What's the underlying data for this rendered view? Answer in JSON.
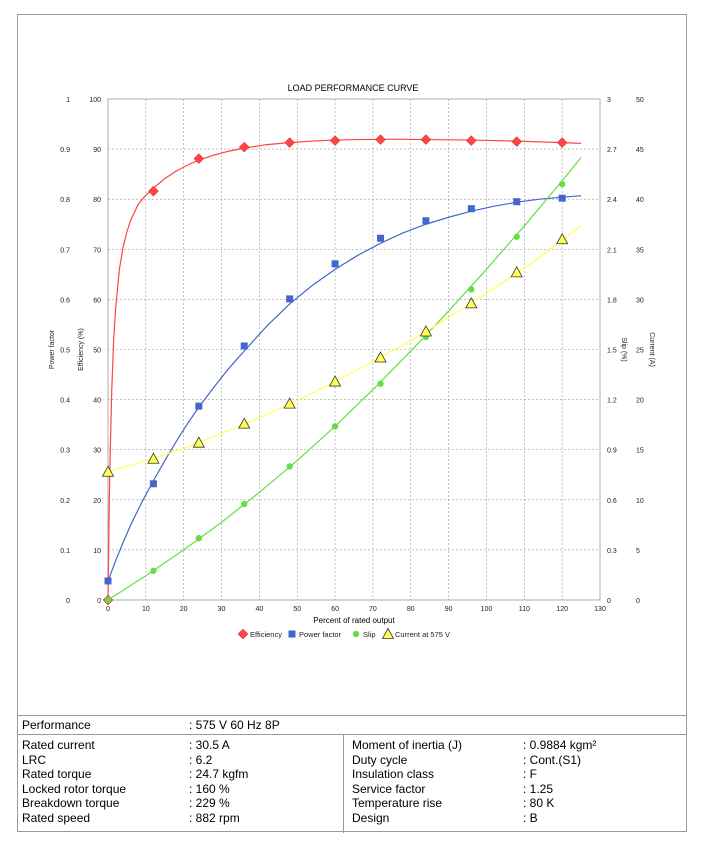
{
  "chart_data": {
    "type": "line",
    "title": "LOAD PERFORMANCE CURVE",
    "xlabel": "Percent of rated output",
    "x_range": [
      0,
      130
    ],
    "x_ticks": [
      "0",
      "10",
      "20",
      "30",
      "40",
      "50",
      "60",
      "70",
      "80",
      "90",
      "100",
      "110",
      "120",
      "130"
    ],
    "left_axes": [
      {
        "label": "Power factor",
        "range": [
          0,
          1
        ],
        "ticks": [
          "0",
          "0.1",
          "0.2",
          "0.3",
          "0.4",
          "0.5",
          "0.6",
          "0.7",
          "0.8",
          "0.9",
          "1"
        ]
      },
      {
        "label": "Efficiency (%)",
        "range": [
          0,
          100
        ],
        "ticks": [
          "0",
          "10",
          "20",
          "30",
          "40",
          "50",
          "60",
          "70",
          "80",
          "90",
          "100"
        ]
      }
    ],
    "right_axes": [
      {
        "label": "Slip (%)",
        "range": [
          0,
          3
        ],
        "ticks": [
          "0",
          "0.3",
          "0.6",
          "0.9",
          "1.2",
          "1.5",
          "1.8",
          "2.1",
          "2.4",
          "2.7",
          "3"
        ]
      },
      {
        "label": "Current (A)",
        "range": [
          0,
          50
        ],
        "ticks": [
          "0",
          "5",
          "10",
          "15",
          "20",
          "25",
          "30",
          "35",
          "40",
          "45",
          "50"
        ]
      }
    ],
    "grid": true,
    "legend_position": "bottom",
    "series": [
      {
        "name": "Efficiency",
        "axis": "Efficiency (%)",
        "color": "#ff4444",
        "marker": "diamond",
        "x": [
          0,
          12,
          24,
          36,
          48,
          60,
          72,
          84,
          96,
          108,
          120
        ],
        "y": [
          0,
          81.6,
          88.1,
          90.4,
          91.3,
          91.7,
          91.9,
          91.9,
          91.7,
          91.5,
          91.3
        ],
        "curve_x": [
          0,
          0.3,
          0.6,
          1,
          1.5,
          2,
          3,
          4,
          5,
          6,
          8,
          10,
          12,
          15,
          18,
          21,
          24,
          28,
          32,
          36,
          42,
          48,
          54,
          60,
          66,
          72,
          78,
          84,
          90,
          96,
          102,
          108,
          114,
          120,
          125
        ],
        "curve_y": [
          0,
          18,
          30,
          42,
          52,
          58,
          66,
          70.5,
          73.5,
          75.8,
          79,
          80.8,
          82.2,
          84.1,
          85.6,
          86.8,
          87.8,
          88.8,
          89.6,
          90.2,
          90.9,
          91.3,
          91.6,
          91.8,
          91.9,
          91.95,
          91.95,
          91.9,
          91.85,
          91.8,
          91.7,
          91.6,
          91.45,
          91.3,
          91.15
        ]
      },
      {
        "name": "Power factor",
        "axis": "Power factor",
        "color": "#4466cc",
        "marker": "square",
        "x": [
          0,
          12,
          24,
          36,
          48,
          60,
          72,
          84,
          96,
          108,
          120
        ],
        "y": [
          0.038,
          0.232,
          0.387,
          0.507,
          0.601,
          0.671,
          0.722,
          0.757,
          0.781,
          0.795,
          0.802
        ],
        "curve_x": [
          0,
          2,
          4,
          6,
          9,
          12,
          15,
          18,
          21,
          24,
          28,
          32,
          36,
          42,
          48,
          54,
          60,
          66,
          72,
          78,
          84,
          90,
          96,
          102,
          108,
          114,
          120,
          125
        ],
        "curve_y": [
          0.038,
          0.078,
          0.115,
          0.15,
          0.196,
          0.238,
          0.278,
          0.316,
          0.352,
          0.385,
          0.425,
          0.463,
          0.497,
          0.547,
          0.591,
          0.628,
          0.66,
          0.688,
          0.712,
          0.733,
          0.75,
          0.764,
          0.776,
          0.786,
          0.794,
          0.8,
          0.804,
          0.807
        ]
      },
      {
        "name": "Slip",
        "axis": "Slip (%)",
        "color": "#66dd44",
        "marker": "circle",
        "x": [
          0,
          12,
          24,
          36,
          48,
          60,
          72,
          84,
          96,
          108,
          120
        ],
        "y": [
          0,
          0.175,
          0.37,
          0.575,
          0.8,
          1.04,
          1.295,
          1.575,
          1.86,
          2.175,
          2.49
        ],
        "curve_x": [
          0,
          10,
          20,
          30,
          40,
          50,
          60,
          70,
          80,
          90,
          100,
          110,
          120,
          125
        ],
        "curve_y": [
          0,
          0.145,
          0.3,
          0.465,
          0.645,
          0.835,
          1.04,
          1.26,
          1.49,
          1.73,
          1.98,
          2.24,
          2.51,
          2.65
        ]
      },
      {
        "name": "Current at 575 V",
        "axis": "Current (A)",
        "color": "#ffff55",
        "marker": "triangle",
        "x": [
          0,
          12,
          24,
          36,
          48,
          60,
          72,
          84,
          96,
          108,
          120
        ],
        "y": [
          12.8,
          14.1,
          15.7,
          17.6,
          19.6,
          21.8,
          24.2,
          26.8,
          29.6,
          32.7,
          36.0
        ],
        "curve_x": [
          0,
          10,
          20,
          30,
          40,
          50,
          60,
          70,
          80,
          90,
          100,
          110,
          120,
          125
        ],
        "curve_y": [
          12.8,
          13.9,
          15.1,
          16.6,
          18.2,
          19.9,
          21.8,
          23.8,
          25.9,
          28.2,
          30.6,
          33.1,
          35.9,
          37.4
        ]
      }
    ]
  },
  "performance": {
    "label": "Performance",
    "value": ": 575 V 60 Hz 8P"
  },
  "specs_left": [
    {
      "label": "Rated current",
      "value": ": 30.5 A"
    },
    {
      "label": "LRC",
      "value": ": 6.2"
    },
    {
      "label": "Rated torque",
      "value": ": 24.7 kgfm"
    },
    {
      "label": "Locked rotor torque",
      "value": ": 160 %"
    },
    {
      "label": "Breakdown torque",
      "value": ": 229 %"
    },
    {
      "label": "Rated speed",
      "value": ": 882 rpm"
    }
  ],
  "specs_right": [
    {
      "label": "Moment of inertia (J)",
      "value": ": 0.9884 kgm²"
    },
    {
      "label": "Duty cycle",
      "value": ": Cont.(S1)"
    },
    {
      "label": "Insulation class",
      "value": ": F"
    },
    {
      "label": "Service factor",
      "value": ": 1.25"
    },
    {
      "label": "Temperature rise",
      "value": ": 80 K"
    },
    {
      "label": "Design",
      "value": ": B"
    }
  ]
}
